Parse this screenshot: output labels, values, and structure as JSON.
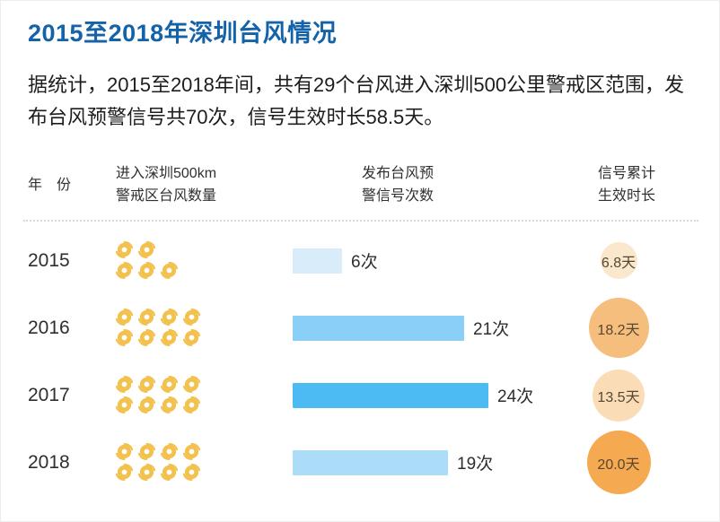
{
  "page": {
    "title": "2015至2018年深圳台风情况",
    "intro": "据统计，2015至2018年间，共有29个台风进入深圳500公里警戒区范围，发布台风预警信号共70次，信号生效时长58.5天。"
  },
  "table": {
    "headers": {
      "year": "年　份",
      "typhoons_line1": "进入深圳500km",
      "typhoons_line2": "警戒区台风数量",
      "signals_line1": "发布台风预",
      "signals_line2": "警信号次数",
      "duration_line1": "信号累计",
      "duration_line2": "生效时长"
    },
    "rows": [
      {
        "year": "2015",
        "typhoons": 5,
        "signals": 6,
        "signal_label": "6次",
        "days": 6.8,
        "days_label": "6.8天",
        "bar_color": "#d8ecf9",
        "circle_color": "#fae7cc"
      },
      {
        "year": "2016",
        "typhoons": 8,
        "signals": 21,
        "signal_label": "21次",
        "days": 18.2,
        "days_label": "18.2天",
        "bar_color": "#8ad0f6",
        "circle_color": "#f6be7d"
      },
      {
        "year": "2017",
        "typhoons": 8,
        "signals": 24,
        "signal_label": "24次",
        "days": 13.5,
        "days_label": "13.5天",
        "bar_color": "#4cbbf3",
        "circle_color": "#faddb7"
      },
      {
        "year": "2018",
        "typhoons": 8,
        "signals": 19,
        "signal_label": "19次",
        "days": 20.0,
        "days_label": "20.0天",
        "bar_color": "#abddf8",
        "circle_color": "#f5a950"
      }
    ]
  },
  "colors": {
    "title_blue": "#1463a8",
    "typhoon_icon": "#f2c14e",
    "text_dark": "#2e2e2e"
  },
  "chart_data": {
    "type": "table",
    "title": "2015至2018年深圳台风情况",
    "categories": [
      "2015",
      "2016",
      "2017",
      "2018"
    ],
    "series": [
      {
        "name": "进入深圳500km警戒区台风数量",
        "unit": "个",
        "type": "pictogram",
        "values": [
          5,
          8,
          8,
          8
        ]
      },
      {
        "name": "发布台风预警信号次数",
        "unit": "次",
        "type": "bar",
        "values": [
          6,
          21,
          24,
          19
        ],
        "labels": [
          "6次",
          "21次",
          "24次",
          "19次"
        ]
      },
      {
        "name": "信号累计生效时长",
        "unit": "天",
        "type": "bubble",
        "values": [
          6.8,
          18.2,
          13.5,
          20.0
        ],
        "labels": [
          "6.8天",
          "18.2天",
          "13.5天",
          "20.0天"
        ]
      }
    ],
    "totals": {
      "typhoons": 29,
      "signals": 70,
      "duration_days": 58.5
    },
    "layout_hints": {
      "grid": false,
      "legend": false,
      "bars_horizontal": true
    }
  }
}
